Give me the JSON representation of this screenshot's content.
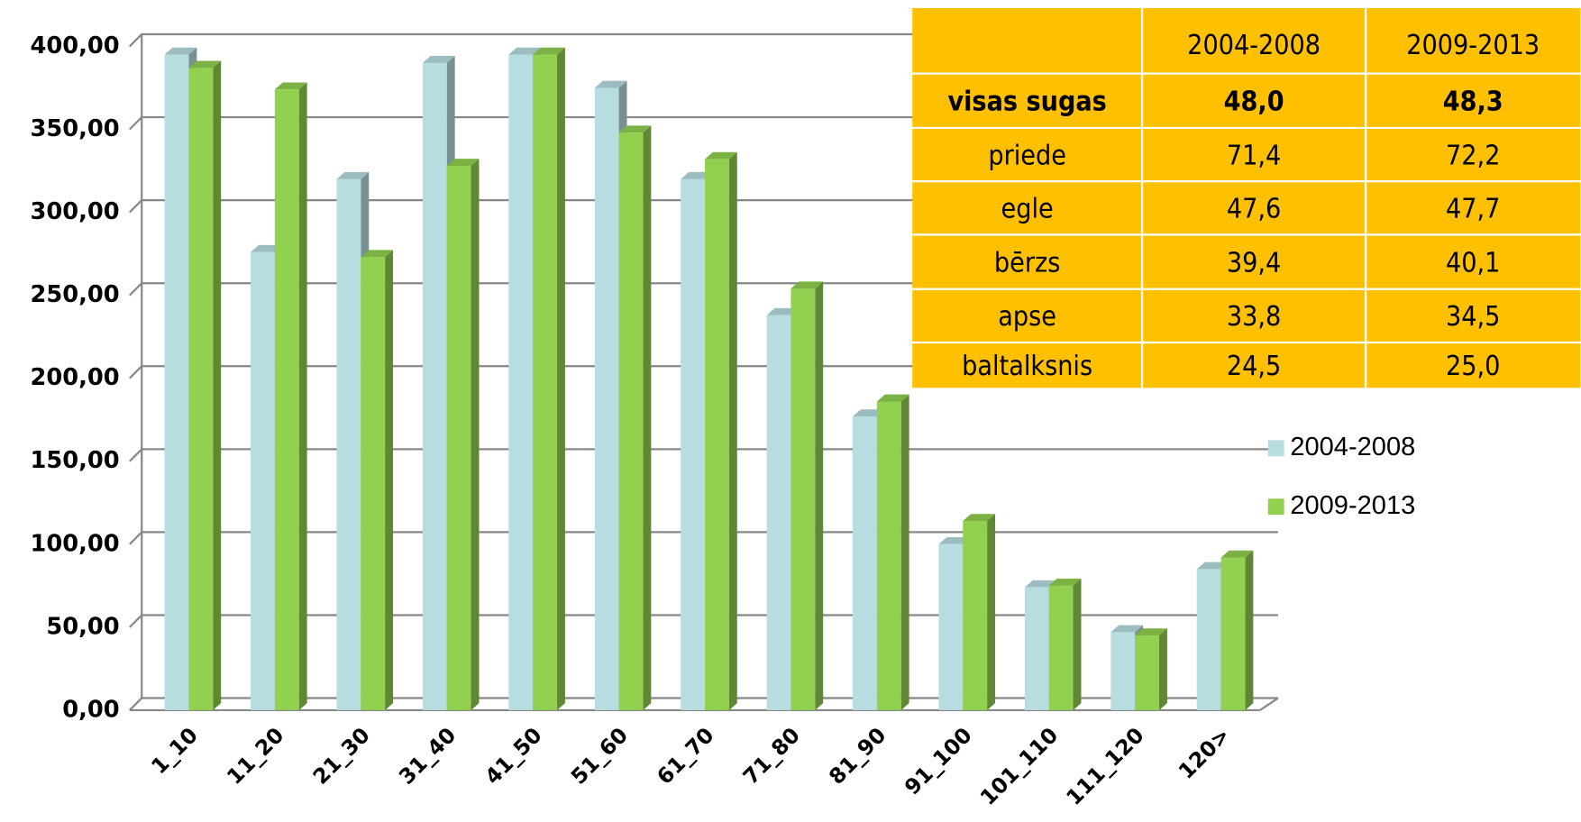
{
  "chart_data": {
    "type": "bar3d",
    "categories": [
      "1_10",
      "11_20",
      "21_30",
      "31_40",
      "41_50",
      "51_60",
      "61_70",
      "71_80",
      "81_90",
      "91_100",
      "101_110",
      "111_120",
      "120>"
    ],
    "series": [
      {
        "name": "2004-2008",
        "color": "#b7dde1",
        "values": [
          395,
          276,
          320,
          390,
          395,
          375,
          320,
          238,
          177,
          100,
          74,
          47,
          85
        ]
      },
      {
        "name": "2009-2013",
        "color": "#92d050",
        "values": [
          387,
          374,
          273,
          328,
          395,
          348,
          332,
          254,
          186,
          114,
          75,
          45,
          92
        ]
      }
    ],
    "ylim": [
      0,
      400
    ],
    "yticks": [
      {
        "value": 0,
        "label": "0,00"
      },
      {
        "value": 50,
        "label": "50,00"
      },
      {
        "value": 100,
        "label": "100,00"
      },
      {
        "value": 150,
        "label": "150,00"
      },
      {
        "value": 200,
        "label": "200,00"
      },
      {
        "value": 250,
        "label": "250,00"
      },
      {
        "value": 300,
        "label": "300,00"
      },
      {
        "value": 350,
        "label": "350,00"
      },
      {
        "value": 400,
        "label": "400,00"
      }
    ],
    "grid": true,
    "legend": "right"
  },
  "table": {
    "columns": [
      "2004-2008",
      "2009-2013"
    ],
    "rows": [
      [
        "visas sugas",
        "48,0",
        "48,3"
      ],
      [
        "priede",
        "71,4",
        "72,2"
      ],
      [
        "egle",
        "47,6",
        "47,7"
      ],
      [
        "bērzs",
        "39,4",
        "40,1"
      ],
      [
        "apse",
        "33,8",
        "34,5"
      ],
      [
        "baltalksnis",
        "24,5",
        "25,0"
      ]
    ]
  }
}
